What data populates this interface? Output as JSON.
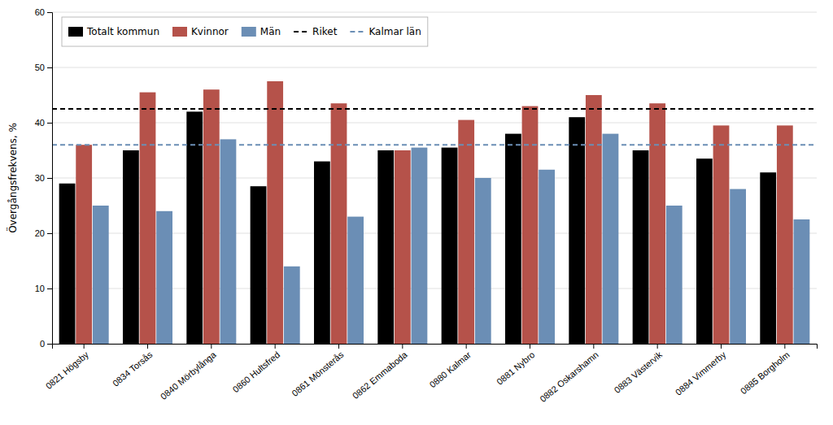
{
  "chart_data": {
    "type": "bar",
    "ylabel": "Övergångsfrekvens, %",
    "categories": [
      "0821 Högsby",
      "0834 Torsås",
      "0840 Mörbylånga",
      "0860 Hultsfred",
      "0861 Mönsterås",
      "0862 Emmaboda",
      "0880 Kalmar",
      "0881 Nybro",
      "0882 Oskarshamn",
      "0883 Västervik",
      "0884 Vimmerby",
      "0885 Borgholm"
    ],
    "series": [
      {
        "name": "Totalt kommun",
        "color": "#000000",
        "values": [
          29,
          35,
          42,
          28.5,
          33,
          35,
          35.5,
          38,
          41,
          35,
          33.5,
          31
        ]
      },
      {
        "name": "Kvinnor",
        "color": "#b5524a",
        "values": [
          36,
          45.5,
          46,
          47.5,
          43.5,
          35,
          40.5,
          43,
          45,
          43.5,
          39.5,
          39.5
        ]
      },
      {
        "name": "Män",
        "color": "#6b8eb5",
        "values": [
          25,
          24,
          37,
          14,
          23,
          35.5,
          30,
          31.5,
          38,
          25,
          28,
          22.5
        ]
      },
      {
        "name": "Riket",
        "type": "hline",
        "color": "#000000",
        "line_style": "dashed",
        "value": 42.5
      },
      {
        "name": "Kalmar län",
        "type": "hline",
        "color": "#6b8eb5",
        "line_style": "dashed",
        "value": 36
      }
    ],
    "ylim": [
      0,
      60
    ],
    "yticks": [
      0,
      10,
      20,
      30,
      40,
      50,
      60
    ],
    "grid": true,
    "legend": "upper left"
  }
}
